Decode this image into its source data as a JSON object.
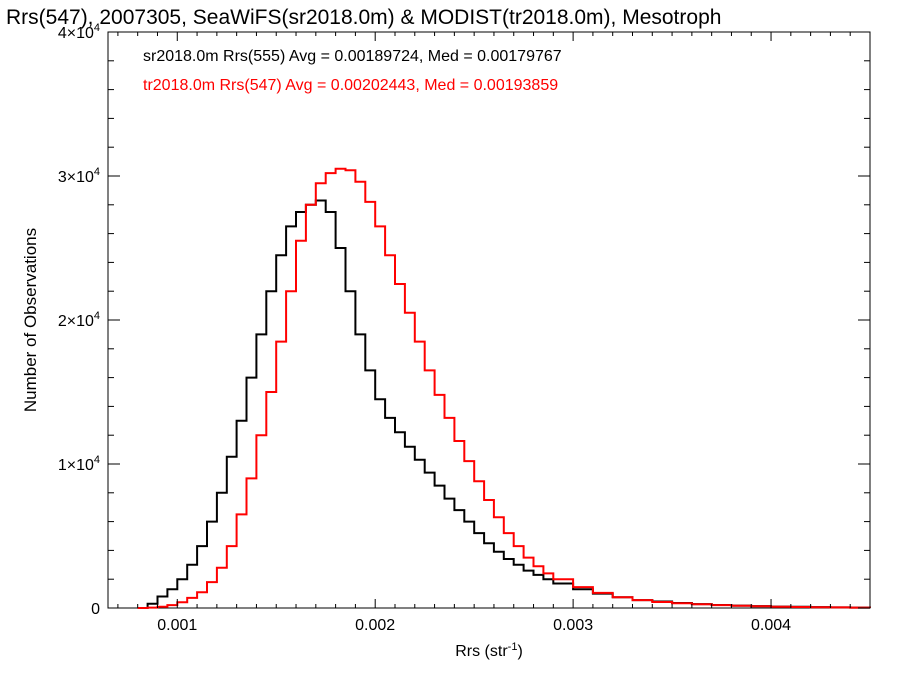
{
  "chart_data": {
    "type": "line",
    "title": "Rrs(547), 2007305, SeaWiFS(sr2018.0m) & MODIST(tr2018.0m), Mesotroph",
    "xlabel": "Rrs (str",
    "xlabel_sup": "-1",
    "xlabel_suffix": ")",
    "ylabel": "Number of Observations",
    "xlim": [
      0.00065,
      0.0045
    ],
    "ylim": [
      0,
      40000
    ],
    "x_ticks": [
      {
        "value": 0.001,
        "label": "0.001"
      },
      {
        "value": 0.002,
        "label": "0.002"
      },
      {
        "value": 0.003,
        "label": "0.003"
      },
      {
        "value": 0.004,
        "label": "0.004"
      }
    ],
    "y_ticks": [
      {
        "value": 0,
        "label": "0",
        "mult": "",
        "exp": ""
      },
      {
        "value": 10000,
        "label": "1",
        "mult": "×10",
        "exp": "4"
      },
      {
        "value": 20000,
        "label": "2",
        "mult": "×10",
        "exp": "4"
      },
      {
        "value": 30000,
        "label": "3",
        "mult": "×10",
        "exp": "4"
      },
      {
        "value": 40000,
        "label": "4",
        "mult": "×10",
        "exp": "4"
      }
    ],
    "grid": false,
    "series": [
      {
        "legend": "sr2018.0m Rrs(555) Avg = 0.00189724, Med = 0.00179767",
        "color": "#000000",
        "points": [
          [
            0.0008,
            0
          ],
          [
            0.00085,
            300
          ],
          [
            0.0009,
            800
          ],
          [
            0.00095,
            1300
          ],
          [
            0.001,
            2000
          ],
          [
            0.00105,
            3000
          ],
          [
            0.0011,
            4300
          ],
          [
            0.00115,
            6000
          ],
          [
            0.0012,
            8000
          ],
          [
            0.00125,
            10500
          ],
          [
            0.0013,
            13000
          ],
          [
            0.00135,
            16000
          ],
          [
            0.0014,
            19000
          ],
          [
            0.00145,
            22000
          ],
          [
            0.0015,
            24500
          ],
          [
            0.00155,
            26500
          ],
          [
            0.0016,
            27500
          ],
          [
            0.00165,
            28000
          ],
          [
            0.0017,
            28300
          ],
          [
            0.00175,
            27500
          ],
          [
            0.0018,
            25000
          ],
          [
            0.00185,
            22000
          ],
          [
            0.0019,
            19000
          ],
          [
            0.00195,
            16500
          ],
          [
            0.002,
            14500
          ],
          [
            0.00205,
            13200
          ],
          [
            0.0021,
            12200
          ],
          [
            0.00215,
            11200
          ],
          [
            0.0022,
            10300
          ],
          [
            0.00225,
            9400
          ],
          [
            0.0023,
            8500
          ],
          [
            0.00235,
            7600
          ],
          [
            0.0024,
            6800
          ],
          [
            0.00245,
            6000
          ],
          [
            0.0025,
            5200
          ],
          [
            0.00255,
            4500
          ],
          [
            0.0026,
            3900
          ],
          [
            0.00265,
            3400
          ],
          [
            0.0027,
            3000
          ],
          [
            0.00275,
            2600
          ],
          [
            0.0028,
            2300
          ],
          [
            0.00285,
            2000
          ],
          [
            0.0029,
            1700
          ],
          [
            0.003,
            1300
          ],
          [
            0.0031,
            1000
          ],
          [
            0.0032,
            750
          ],
          [
            0.0033,
            550
          ],
          [
            0.0034,
            450
          ],
          [
            0.0035,
            350
          ],
          [
            0.0036,
            270
          ],
          [
            0.0037,
            210
          ],
          [
            0.0038,
            170
          ],
          [
            0.0039,
            130
          ],
          [
            0.004,
            100
          ],
          [
            0.0041,
            80
          ],
          [
            0.0042,
            60
          ],
          [
            0.0043,
            40
          ],
          [
            0.0044,
            30
          ],
          [
            0.0045,
            20
          ]
        ]
      },
      {
        "legend": "tr2018.0m Rrs(547) Avg = 0.00202443, Med = 0.00193859",
        "color": "#ff0000",
        "points": [
          [
            0.0008,
            0
          ],
          [
            0.00085,
            30
          ],
          [
            0.0009,
            80
          ],
          [
            0.00095,
            200
          ],
          [
            0.001,
            400
          ],
          [
            0.00105,
            700
          ],
          [
            0.0011,
            1100
          ],
          [
            0.00115,
            1800
          ],
          [
            0.0012,
            2800
          ],
          [
            0.00125,
            4300
          ],
          [
            0.0013,
            6500
          ],
          [
            0.00135,
            9000
          ],
          [
            0.0014,
            12000
          ],
          [
            0.00145,
            15000
          ],
          [
            0.0015,
            18500
          ],
          [
            0.00155,
            22000
          ],
          [
            0.0016,
            25500
          ],
          [
            0.00165,
            28000
          ],
          [
            0.0017,
            29500
          ],
          [
            0.00175,
            30200
          ],
          [
            0.0018,
            30500
          ],
          [
            0.00185,
            30400
          ],
          [
            0.0019,
            29600
          ],
          [
            0.00195,
            28200
          ],
          [
            0.002,
            26500
          ],
          [
            0.00205,
            24500
          ],
          [
            0.0021,
            22500
          ],
          [
            0.00215,
            20500
          ],
          [
            0.0022,
            18500
          ],
          [
            0.00225,
            16500
          ],
          [
            0.0023,
            14800
          ],
          [
            0.00235,
            13200
          ],
          [
            0.0024,
            11600
          ],
          [
            0.00245,
            10200
          ],
          [
            0.0025,
            8800
          ],
          [
            0.00255,
            7500
          ],
          [
            0.0026,
            6300
          ],
          [
            0.00265,
            5200
          ],
          [
            0.0027,
            4300
          ],
          [
            0.00275,
            3500
          ],
          [
            0.0028,
            2900
          ],
          [
            0.00285,
            2400
          ],
          [
            0.0029,
            2000
          ],
          [
            0.003,
            1450
          ],
          [
            0.0031,
            1050
          ],
          [
            0.0032,
            750
          ],
          [
            0.0033,
            550
          ],
          [
            0.0034,
            420
          ],
          [
            0.0035,
            330
          ],
          [
            0.0036,
            260
          ],
          [
            0.0037,
            200
          ],
          [
            0.0038,
            160
          ],
          [
            0.0039,
            120
          ],
          [
            0.004,
            90
          ],
          [
            0.0041,
            70
          ],
          [
            0.0042,
            55
          ],
          [
            0.0043,
            40
          ],
          [
            0.0044,
            30
          ],
          [
            0.0045,
            20
          ]
        ]
      }
    ]
  }
}
